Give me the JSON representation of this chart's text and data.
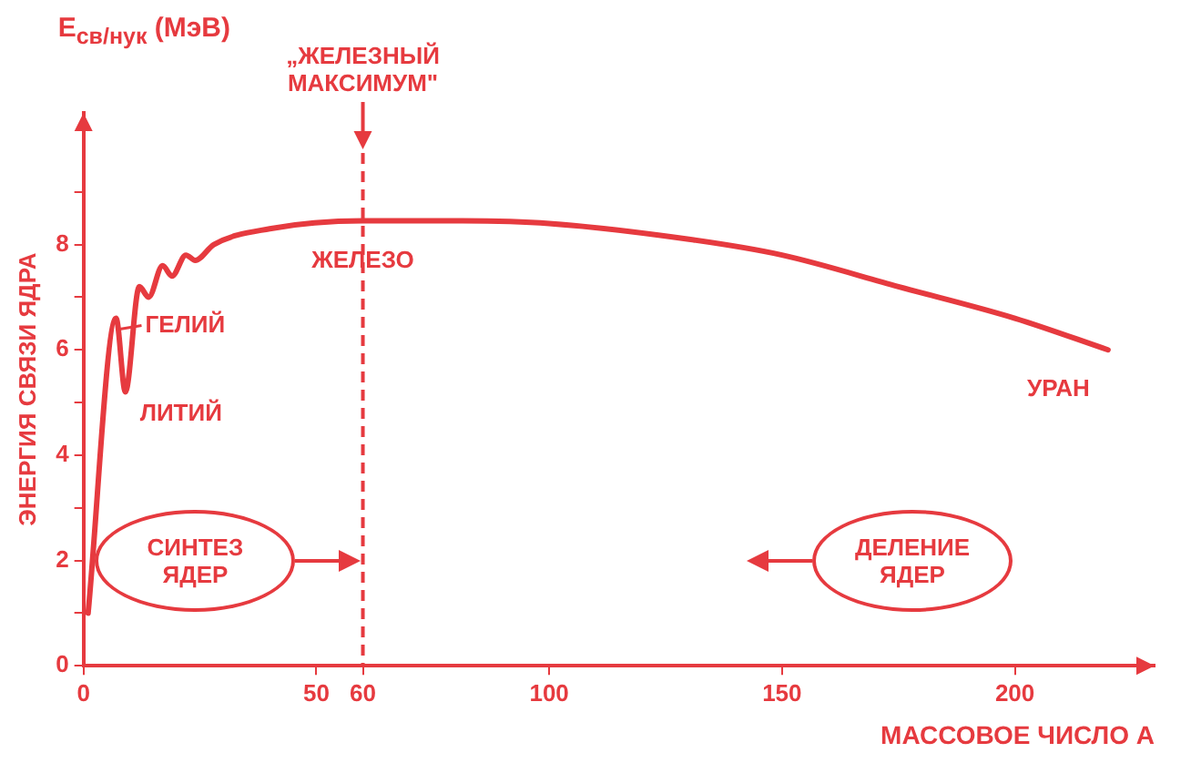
{
  "chart_data": {
    "type": "line",
    "xlabel": "МАССОВОЕ ЧИСЛО A",
    "ylabel": "ЭНЕРГИЯ СВЯЗИ ЯДРА",
    "x": [
      1,
      7,
      9,
      12,
      14,
      17,
      19,
      22,
      24,
      28,
      40,
      60,
      80,
      100,
      130,
      150,
      175,
      200,
      220
    ],
    "values": [
      1.0,
      6.6,
      5.2,
      7.2,
      7.0,
      7.6,
      7.4,
      7.8,
      7.7,
      8.0,
      8.3,
      8.45,
      8.45,
      8.4,
      8.1,
      7.8,
      7.2,
      6.6,
      6.0
    ],
    "color": "#e63a3f",
    "marker": "none",
    "grid": false,
    "legend": false,
    "xlim": [
      0,
      230
    ],
    "ylim": [
      0,
      10.5
    ],
    "xticks": [
      0,
      50,
      60,
      100,
      150,
      200
    ],
    "yticks": [
      0,
      {
        "value": 1,
        "label": null
      },
      2,
      {
        "value": 3,
        "label": null
      },
      4,
      {
        "value": 5,
        "label": null
      },
      6,
      {
        "value": 7,
        "label": null
      },
      8,
      {
        "value": 9,
        "label": null
      }
    ],
    "ref_lines": [
      {
        "axis": "x",
        "value": 60,
        "label": "„ЖЕЛЕЗНЫЙ МАКСИМУМ\"",
        "line_style": "dashed"
      }
    ],
    "annotations": [
      "E$_{св/нук}$ (МэВ)",
      "СИНТЕЗ ЯДЕР",
      "ДЕЛЕНИЕ ЯДЕР",
      {
        "text": "ЖЕЛЕЗО",
        "x": 60,
        "y": 8.45
      },
      {
        "text": "ГЕЛИЙ",
        "x": 7,
        "y": 6.6
      },
      {
        "text": "ЛИТИЙ",
        "x": 9,
        "y": 5.2
      },
      {
        "text": "УРАН",
        "x": 220,
        "y": 6.0
      }
    ]
  }
}
